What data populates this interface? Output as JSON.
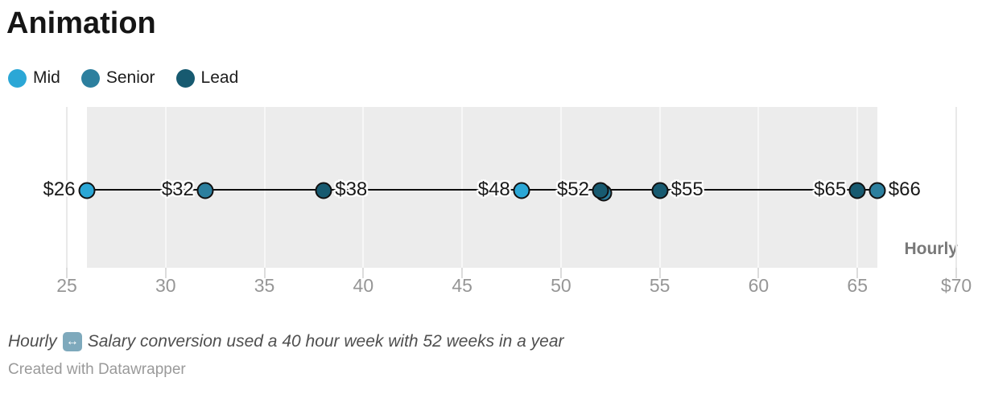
{
  "title": "Animation",
  "chart_data": {
    "type": "scatter",
    "title": "Animation",
    "legend": [
      {
        "label": "Mid",
        "color": "#2ba7d6"
      },
      {
        "label": "Senior",
        "color": "#2c7f9e"
      },
      {
        "label": "Lead",
        "color": "#175a70"
      }
    ],
    "axis": {
      "min": 25,
      "max": 70,
      "tick_values": [
        25,
        30,
        35,
        40,
        45,
        50,
        55,
        60,
        65,
        70
      ],
      "tick_labels": [
        "25",
        "30",
        "35",
        "40",
        "45",
        "50",
        "55",
        "60",
        "65",
        "$70"
      ],
      "unit_label": "Hourly",
      "grid": true
    },
    "points": [
      {
        "value": 26,
        "label": "$26",
        "series": "Mid",
        "label_side": "left"
      },
      {
        "value": 32,
        "label": "$32",
        "series": "Senior",
        "label_side": "left"
      },
      {
        "value": 38,
        "label": "$38",
        "series": "Lead",
        "label_side": "right"
      },
      {
        "value": 48,
        "label": "$48",
        "series": "Mid",
        "label_side": "left"
      },
      {
        "value": 52,
        "label": "$52",
        "series": "Lead",
        "label_side": "left",
        "underlay_series": "Senior"
      },
      {
        "value": 55,
        "label": "$55",
        "series": "Lead",
        "label_side": "right"
      },
      {
        "value": 65,
        "label": "$65",
        "series": "Lead",
        "label_side": "left"
      },
      {
        "value": 66,
        "label": "$66",
        "series": "Senior",
        "label_side": "right"
      }
    ],
    "connector_line": {
      "from": 26,
      "to": 66
    },
    "range_band": {
      "from": 26,
      "to": 66,
      "color": "#ececec"
    }
  },
  "footer": {
    "note_prefix": "Hourly",
    "note_icon_glyph": "↔",
    "note_text": "Salary conversion used a 40 hour week with 52 weeks in a year",
    "credit": "Created with Datawrapper"
  }
}
